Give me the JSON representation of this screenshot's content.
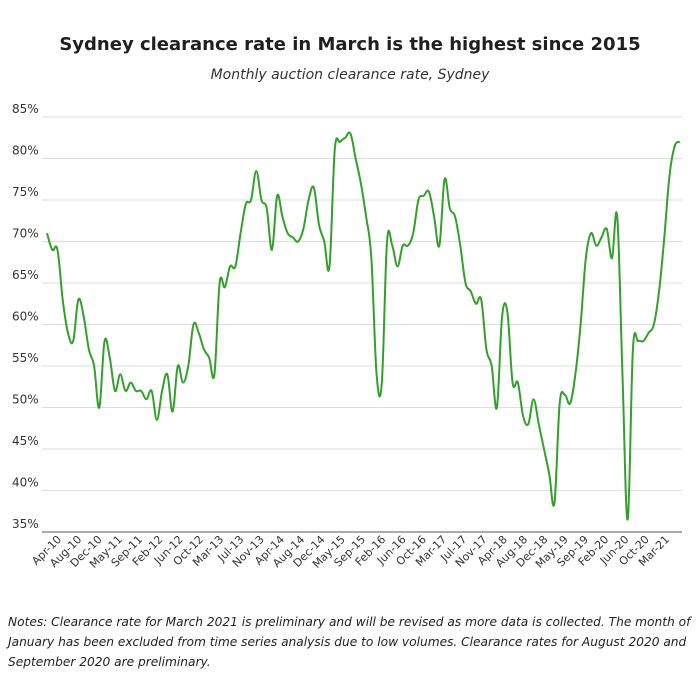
{
  "title": "Sydney clearance rate in March is the highest since 2015",
  "subtitle": "Monthly auction clearance rate, Sydney",
  "notes": "Notes: Clearance rate for March 2021 is preliminary and will be revised as more data is collected. The month of January has been excluded from time series analysis due to low volumes. Clearance rates for August 2020 and September 2020 are preliminary.",
  "colors": {
    "line": "#33a02c",
    "grid": "#dddddd",
    "axis": "#555555"
  },
  "chart_data": {
    "type": "line",
    "title": "Sydney clearance rate in March is the highest since 2015",
    "subtitle": "Monthly auction clearance rate, Sydney",
    "xlabel": "",
    "ylabel": "",
    "ylim": [
      35,
      85
    ],
    "y_ticks": [
      35,
      40,
      45,
      50,
      55,
      60,
      65,
      70,
      75,
      80,
      85
    ],
    "y_tick_labels": [
      "35%",
      "40%",
      "45%",
      "50%",
      "55%",
      "60%",
      "65%",
      "70%",
      "75%",
      "80%",
      "85%"
    ],
    "x_tick_labels": [
      "Apr-10",
      "Aug-10",
      "Dec-10",
      "May-11",
      "Sep-11",
      "Feb-12",
      "Jun-12",
      "Oct-12",
      "Mar-13",
      "Jul-13",
      "Nov-13",
      "Apr-14",
      "Aug-14",
      "Dec-14",
      "May-15",
      "Sep-15",
      "Feb-16",
      "Jun-16",
      "Oct-16",
      "Mar-17",
      "Jul-17",
      "Nov-17",
      "Apr-18",
      "Aug-18",
      "Dec-18",
      "May-19",
      "Sep-19",
      "Feb-20",
      "Jun-20",
      "Oct-20",
      "Mar-21"
    ],
    "grid": "horizontal",
    "series": [
      {
        "values": [
          71,
          69,
          69,
          63,
          59,
          58,
          63,
          61,
          57,
          55,
          50,
          58,
          56,
          52,
          54,
          52,
          53,
          52,
          52,
          51,
          52,
          48.5,
          52,
          54,
          49.5,
          55,
          53,
          55,
          60,
          59,
          57,
          56,
          54,
          65,
          64.5,
          67,
          67,
          71,
          74.5,
          75,
          78.5,
          75,
          74,
          69,
          75.5,
          73,
          71,
          70.5,
          70,
          71.5,
          75,
          76.5,
          72,
          70,
          67,
          81,
          82,
          82.5,
          83,
          80,
          77,
          73,
          68,
          54,
          53,
          70,
          69.5,
          67,
          69.5,
          69.5,
          71,
          75,
          75.5,
          76,
          73,
          69.5,
          77.5,
          74,
          73,
          69.5,
          65,
          64,
          62.5,
          63,
          57,
          55,
          50,
          61,
          61.5,
          53,
          53,
          49,
          48,
          51,
          48,
          45,
          42,
          38.5,
          50.5,
          51.5,
          50.5,
          54,
          60,
          68,
          71,
          69.5,
          70.5,
          71.5,
          68,
          73,
          54,
          36.5,
          57,
          58,
          58,
          59,
          60,
          64,
          70.5,
          78,
          81.5,
          82
        ]
      }
    ]
  }
}
